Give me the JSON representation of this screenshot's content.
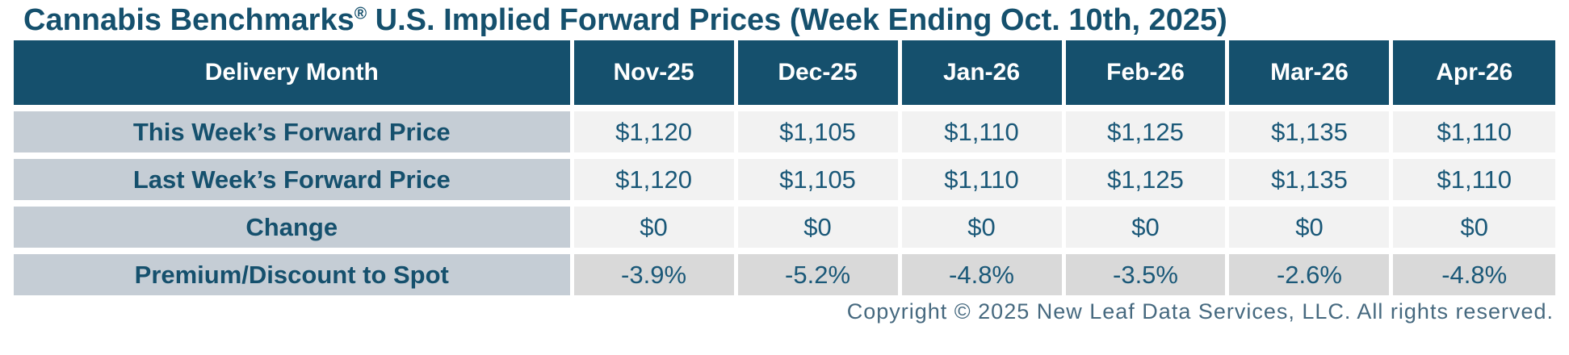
{
  "title": {
    "prefix": "Cannabis Benchmarks",
    "registered": "®",
    "suffix": " U.S. Implied Forward Prices (Week Ending Oct. 10th, 2025)"
  },
  "table": {
    "header": [
      "Delivery Month",
      "Nov-25",
      "Dec-25",
      "Jan-26",
      "Feb-26",
      "Mar-26",
      "Apr-26"
    ],
    "rows": [
      {
        "label": "This Week’s Forward Price",
        "values": [
          "$1,120",
          "$1,105",
          "$1,110",
          "$1,125",
          "$1,135",
          "$1,110"
        ]
      },
      {
        "label": "Last Week’s Forward Price",
        "values": [
          "$1,120",
          "$1,105",
          "$1,110",
          "$1,125",
          "$1,135",
          "$1,110"
        ]
      },
      {
        "label": "Change",
        "values": [
          "$0",
          "$0",
          "$0",
          "$0",
          "$0",
          "$0"
        ]
      },
      {
        "label": "Premium/Discount to Spot",
        "values": [
          "-3.9%",
          "-5.2%",
          "-4.8%",
          "-3.5%",
          "-2.6%",
          "-4.8%"
        ]
      }
    ]
  },
  "footer": {
    "copyright": "Copyright © 2025 New Leaf Data Services, LLC. All rights reserved."
  },
  "colors": {
    "header_bg": "#15506D",
    "header_text": "#FFFFFF",
    "title_text": "#15506D",
    "label_cell_bg": "#C5CDD5",
    "value_cell_bg": "#F2F2F2",
    "value_cell_bg_dark": "#D9D9D9",
    "value_text": "#1A5878",
    "copyright_text": "#46697F",
    "gap_color": "#FFFFFF"
  },
  "chart_data": {
    "type": "table",
    "title": "Cannabis Benchmarks® U.S. Implied Forward Prices (Week Ending Oct. 10th, 2025)",
    "categories": [
      "Nov-25",
      "Dec-25",
      "Jan-26",
      "Feb-26",
      "Mar-26",
      "Apr-26"
    ],
    "series": [
      {
        "name": "This Week's Forward Price",
        "unit": "USD",
        "values": [
          1120,
          1105,
          1110,
          1125,
          1135,
          1110
        ]
      },
      {
        "name": "Last Week's Forward Price",
        "unit": "USD",
        "values": [
          1120,
          1105,
          1110,
          1125,
          1135,
          1110
        ]
      },
      {
        "name": "Change",
        "unit": "USD",
        "values": [
          0,
          0,
          0,
          0,
          0,
          0
        ]
      },
      {
        "name": "Premium/Discount to Spot",
        "unit": "%",
        "values": [
          -3.9,
          -5.2,
          -4.8,
          -3.5,
          -2.6,
          -4.8
        ]
      }
    ],
    "legend_position": "none",
    "grid": false
  }
}
